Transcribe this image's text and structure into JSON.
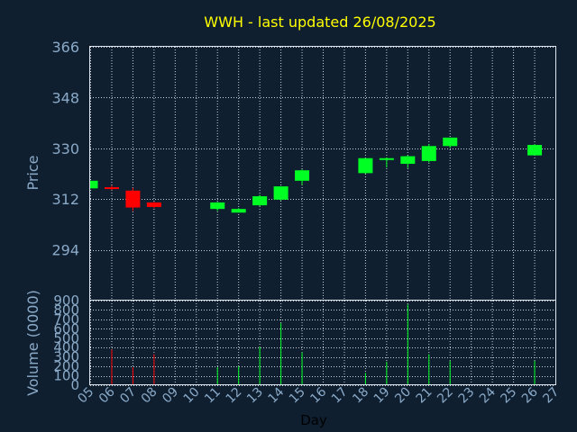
{
  "chart_data": {
    "type": "candlestick",
    "title": "WWH - last updated 26/08/2025",
    "xlabel": "Day",
    "price_ylabel": "Price",
    "volume_ylabel": "Volume (0000)",
    "x_tick_labels": [
      "05",
      "06",
      "07",
      "08",
      "09",
      "10",
      "11",
      "12",
      "13",
      "14",
      "15",
      "16",
      "17",
      "18",
      "19",
      "20",
      "21",
      "22",
      "23",
      "24",
      "25",
      "26",
      "27"
    ],
    "price_ylim": [
      276,
      366
    ],
    "price_yticks": [
      294,
      312,
      330,
      348,
      366
    ],
    "volume_ylim": [
      0,
      900
    ],
    "volume_yticks": [
      0,
      100,
      200,
      300,
      400,
      500,
      600,
      700,
      800,
      900
    ],
    "grid": true,
    "colors": {
      "up": "#00ff22",
      "down": "#ff0000",
      "title": "#ffff00",
      "background": "#0f1f30"
    },
    "candles": [
      {
        "day": "05",
        "open": 315.8,
        "high": 318.5,
        "low": 315.8,
        "close": 318.5,
        "volume": 0
      },
      {
        "day": "06",
        "open": 316.2,
        "high": 316.8,
        "low": 315.2,
        "close": 315.8,
        "volume": 380
      },
      {
        "day": "07",
        "open": 315.0,
        "high": 316.0,
        "low": 307.8,
        "close": 309.0,
        "volume": 190
      },
      {
        "day": "08",
        "open": 310.8,
        "high": 311.0,
        "low": 308.8,
        "close": 309.2,
        "volume": 330
      },
      {
        "day": "11",
        "open": 308.5,
        "high": 311.0,
        "low": 307.8,
        "close": 310.8,
        "volume": 190
      },
      {
        "day": "12",
        "open": 307.2,
        "high": 308.8,
        "low": 307.2,
        "close": 308.5,
        "volume": 200
      },
      {
        "day": "13",
        "open": 309.8,
        "high": 313.5,
        "low": 309.5,
        "close": 313.0,
        "volume": 410
      },
      {
        "day": "14",
        "open": 311.8,
        "high": 316.5,
        "low": 311.5,
        "close": 316.5,
        "volume": 660
      },
      {
        "day": "15",
        "open": 318.5,
        "high": 322.5,
        "low": 317.0,
        "close": 322.2,
        "volume": 350
      },
      {
        "day": "18",
        "open": 321.2,
        "high": 326.5,
        "low": 321.0,
        "close": 326.5,
        "volume": 130
      },
      {
        "day": "19",
        "open": 326.2,
        "high": 326.8,
        "low": 323.2,
        "close": 326.5,
        "volume": 250
      },
      {
        "day": "20",
        "open": 324.5,
        "high": 327.5,
        "low": 323.0,
        "close": 327.2,
        "volume": 860
      },
      {
        "day": "21",
        "open": 325.5,
        "high": 331.5,
        "low": 325.0,
        "close": 330.8,
        "volume": 330
      },
      {
        "day": "22",
        "open": 330.8,
        "high": 333.8,
        "low": 330.2,
        "close": 333.8,
        "volume": 260
      },
      {
        "day": "26",
        "open": 327.5,
        "high": 331.5,
        "low": 327.5,
        "close": 331.2,
        "volume": 260
      }
    ]
  }
}
